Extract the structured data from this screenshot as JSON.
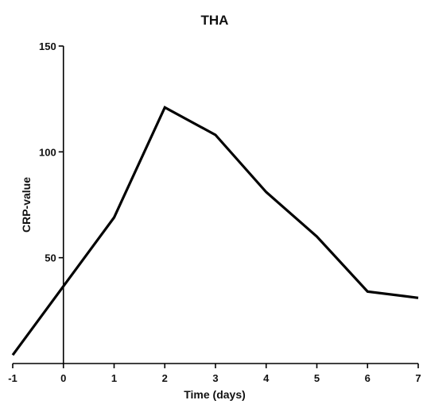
{
  "chart_data": {
    "type": "line",
    "title": "THA",
    "xlabel": "Time (days)",
    "ylabel": "CRP-value",
    "xlim": [
      -1,
      7
    ],
    "ylim": [
      0,
      150
    ],
    "x_ticks": [
      -1,
      0,
      1,
      2,
      3,
      4,
      5,
      6,
      7
    ],
    "y_ticks": [
      50,
      100,
      150
    ],
    "grid": false,
    "legend": "none",
    "series": [
      {
        "x": [
          -1,
          1,
          2,
          3,
          4,
          5,
          6,
          7
        ],
        "values": [
          4,
          69,
          121,
          108,
          81,
          60,
          34,
          31
        ]
      }
    ],
    "colors": {
      "line": "#000000",
      "axis": "#000000"
    }
  }
}
